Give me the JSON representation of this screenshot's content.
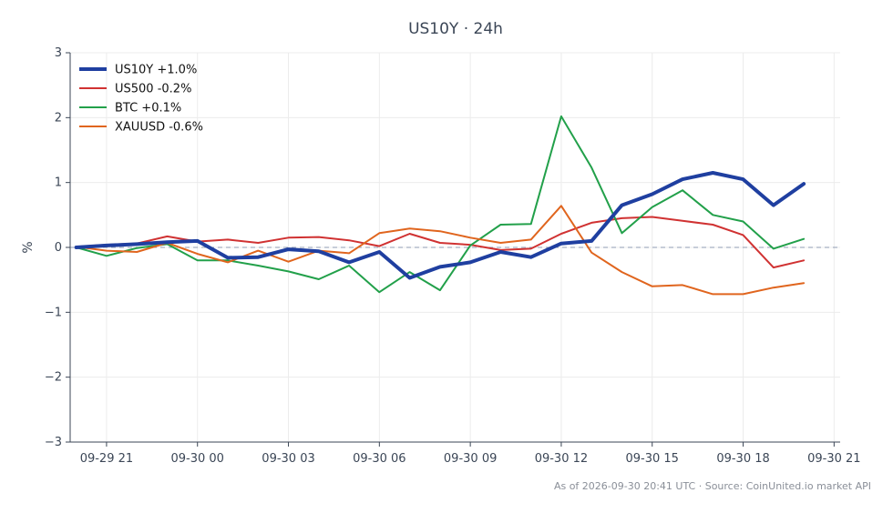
{
  "chart_data": {
    "type": "line",
    "title": "US10Y · 24h",
    "ylabel": "%",
    "xlabel": "",
    "ylim": [
      -3,
      3
    ],
    "yticks": [
      3,
      2,
      1,
      0,
      -1,
      -2,
      -3
    ],
    "ytick_labels": [
      "3",
      "2",
      "1",
      "0",
      "−1",
      "−2",
      "−3"
    ],
    "xticks": [
      {
        "label": "09-29 21",
        "hour": 0
      },
      {
        "label": "09-30 00",
        "hour": 3
      },
      {
        "label": "09-30 03",
        "hour": 6
      },
      {
        "label": "09-30 06",
        "hour": 9
      },
      {
        "label": "09-30 09",
        "hour": 12
      },
      {
        "label": "09-30 12",
        "hour": 15
      },
      {
        "label": "09-30 15",
        "hour": 18
      },
      {
        "label": "09-30 18",
        "hour": 21
      },
      {
        "label": "09-30 21",
        "hour": 24
      }
    ],
    "xlim_hours": [
      -1.2,
      24.2
    ],
    "x_hours": [
      -1,
      0,
      1,
      2,
      3,
      4,
      5,
      6,
      7,
      8,
      9,
      10,
      11,
      12,
      13,
      14,
      15,
      16,
      17,
      18,
      19,
      20,
      21,
      22,
      23
    ],
    "grid": true,
    "legend_position": "top-left",
    "zero_line": true,
    "series": [
      {
        "name": "US10Y +1.0%",
        "color": "#1f3fa0",
        "width": 4,
        "values": [
          0.0,
          0.03,
          0.05,
          0.08,
          0.1,
          -0.16,
          -0.15,
          -0.03,
          -0.06,
          -0.23,
          -0.07,
          -0.47,
          -0.3,
          -0.23,
          -0.07,
          -0.15,
          0.06,
          0.1,
          0.65,
          0.82,
          1.05,
          1.15,
          1.05,
          0.65,
          0.98
        ]
      },
      {
        "name": "US500 -0.2%",
        "color": "#d03232",
        "width": 2,
        "values": [
          0.01,
          0.04,
          0.06,
          0.17,
          0.09,
          0.12,
          0.07,
          0.15,
          0.16,
          0.11,
          0.02,
          0.21,
          0.07,
          0.04,
          -0.04,
          -0.02,
          0.21,
          0.38,
          0.45,
          0.47,
          0.41,
          0.35,
          0.19,
          -0.31,
          -0.2
        ]
      },
      {
        "name": "BTC +0.1%",
        "color": "#22a04a",
        "width": 2,
        "values": [
          0.0,
          -0.13,
          -0.01,
          0.05,
          -0.2,
          -0.2,
          -0.28,
          -0.37,
          -0.49,
          -0.28,
          -0.69,
          -0.38,
          -0.66,
          0.03,
          0.35,
          0.36,
          2.02,
          1.23,
          0.22,
          0.62,
          0.88,
          0.5,
          0.4,
          -0.02,
          0.13
        ]
      },
      {
        "name": "XAUUSD -0.6%",
        "color": "#e0651e",
        "width": 2,
        "values": [
          0.01,
          -0.05,
          -0.07,
          0.07,
          -0.1,
          -0.23,
          -0.05,
          -0.22,
          -0.05,
          -0.09,
          0.22,
          0.29,
          0.25,
          0.15,
          0.07,
          0.12,
          0.64,
          -0.08,
          -0.38,
          -0.6,
          -0.58,
          -0.72,
          -0.72,
          -0.62,
          -0.55
        ]
      }
    ]
  },
  "footer": "As of 2026-09-30 20:41 UTC · Source: CoinUnited.io market API"
}
